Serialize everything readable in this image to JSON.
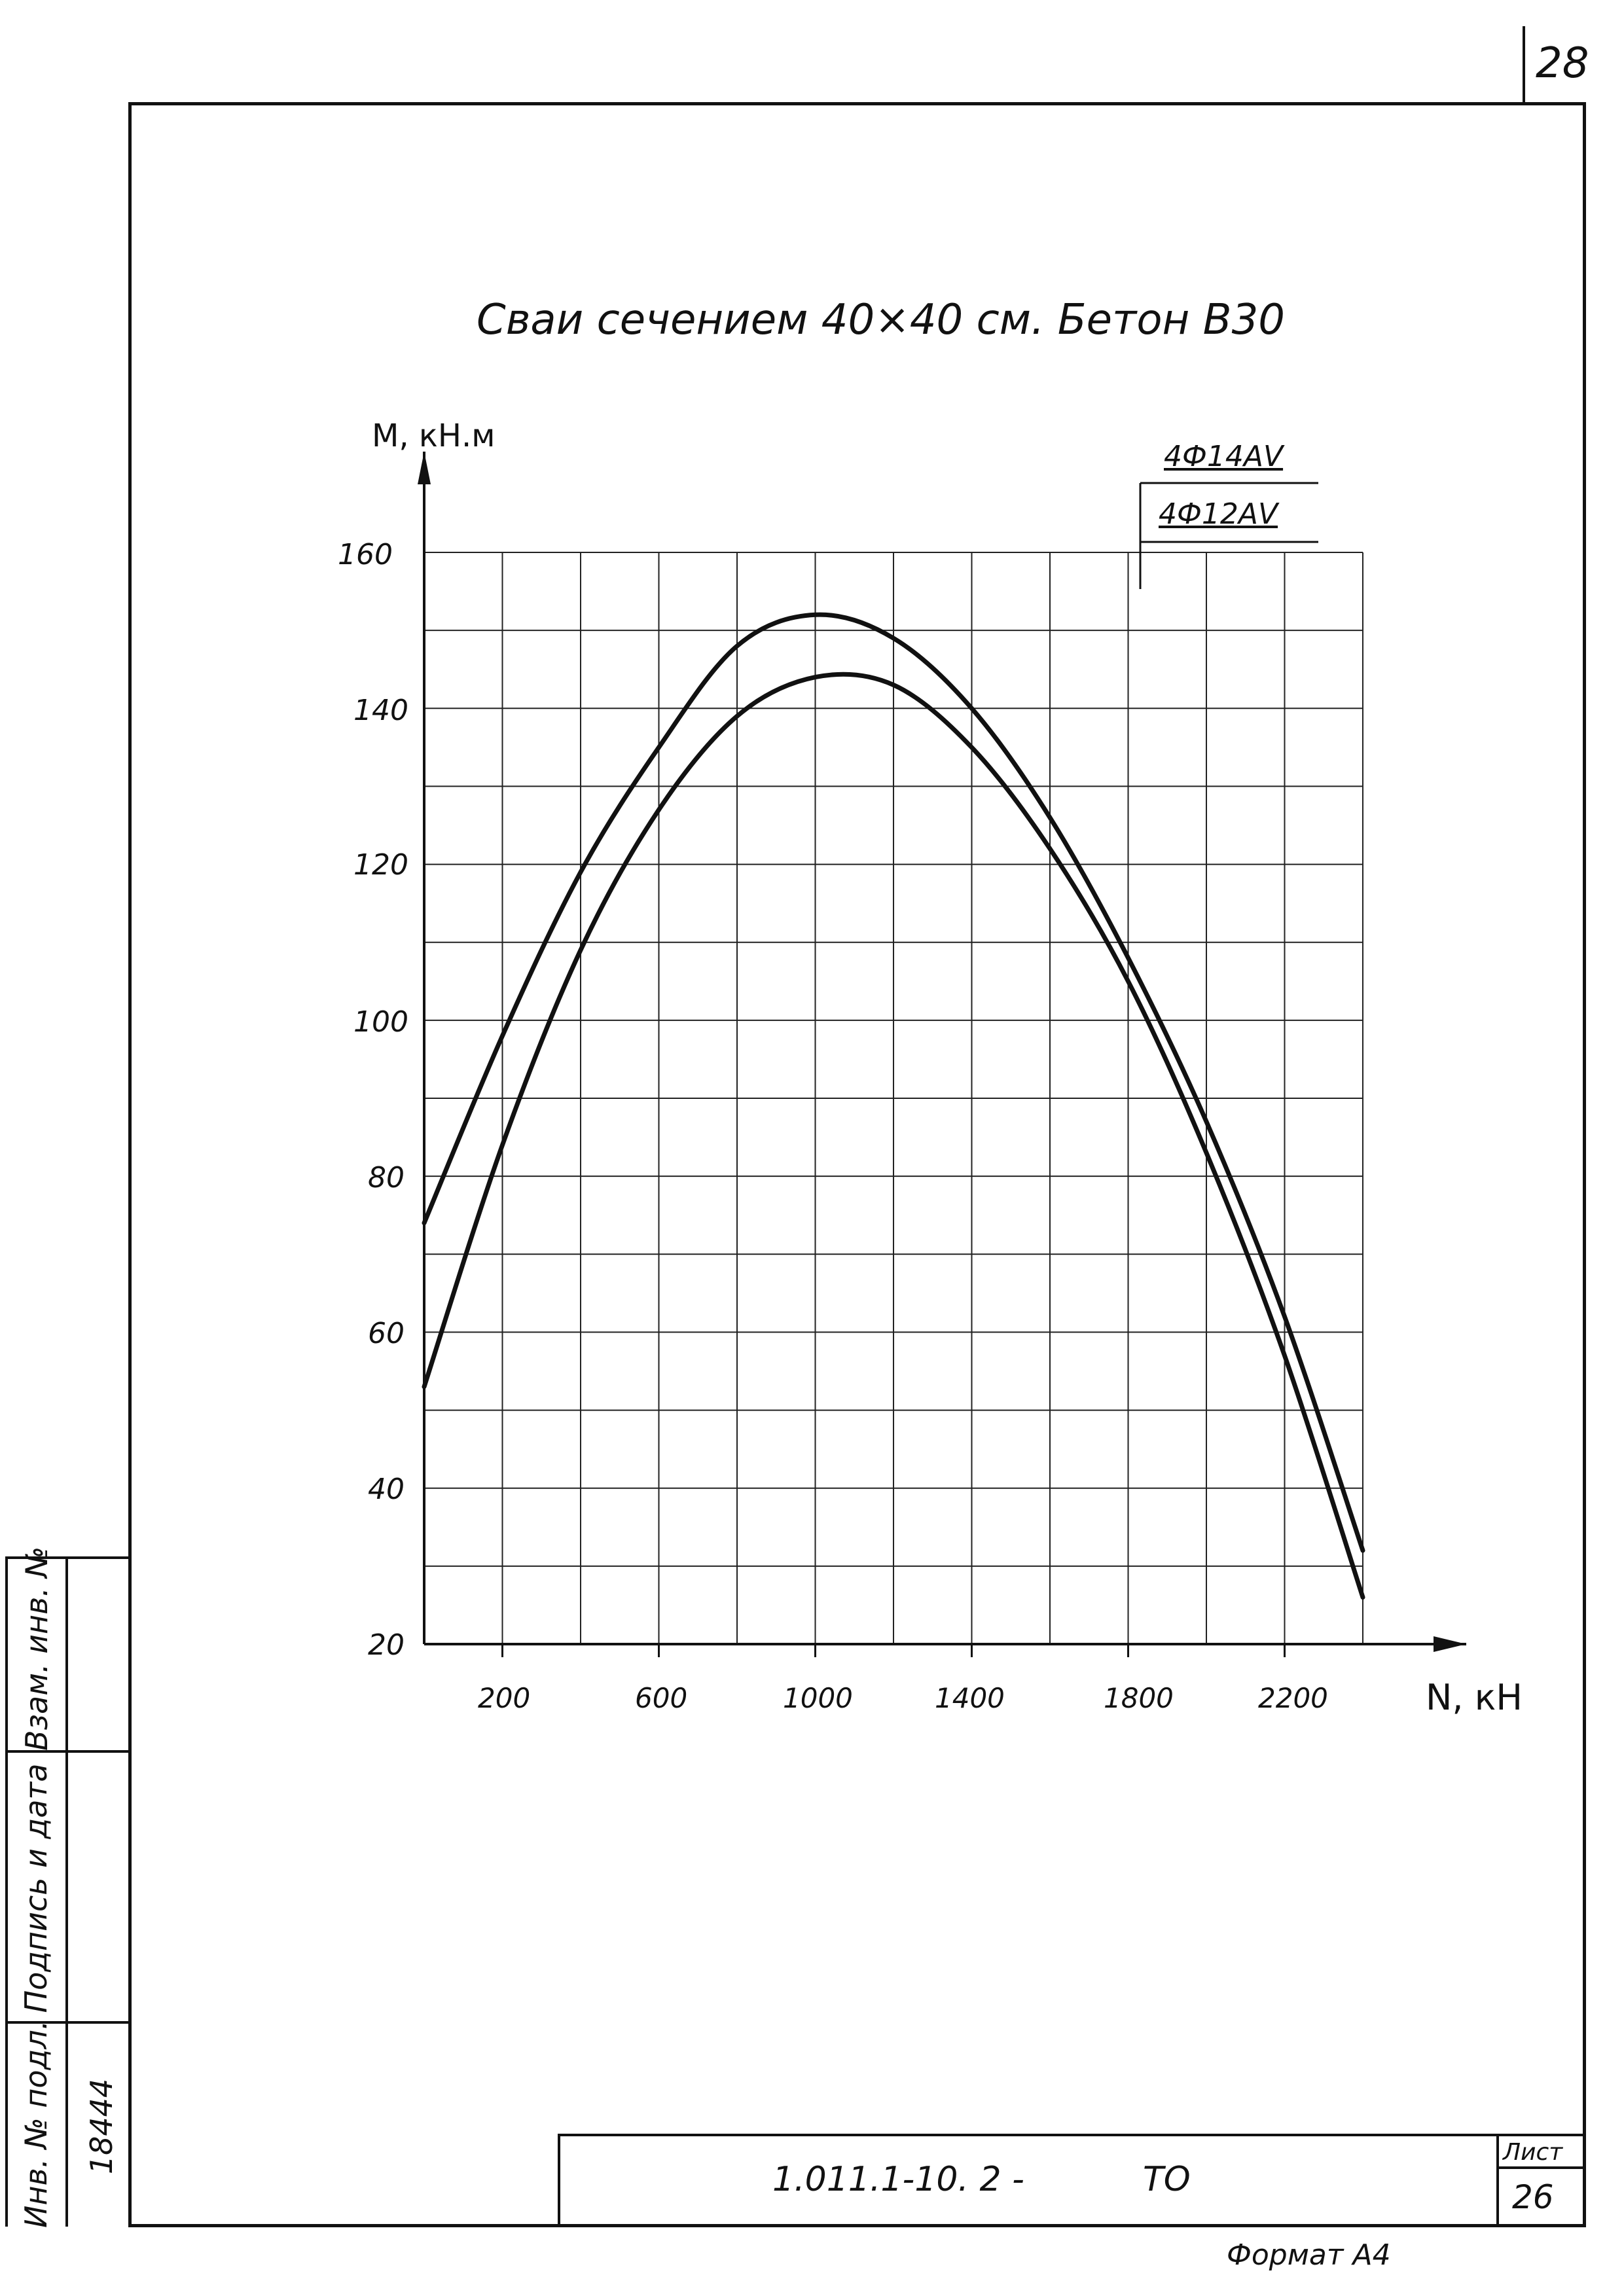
{
  "page": {
    "sheet_number_top": "28",
    "format_label": "Формат А4"
  },
  "stamp": {
    "designation": "1.011.1-10. 2 -",
    "doc_code": "ТО",
    "sheet_label": "Лист",
    "sheet_number": "26"
  },
  "side_stamp": {
    "inv_no_label": "Инв. № подл.",
    "inv_no_value": "18444",
    "sign_date_label": "Подпись и дата",
    "replaces_inv_label": "Взам. инв. №"
  },
  "chart_data": {
    "type": "line",
    "title": "Сваи сечением 40×40 см. Бетон В30",
    "xlabel": "N, кН",
    "ylabel": "М, кН.м",
    "xlim": [
      0,
      2400
    ],
    "ylim": [
      20,
      160
    ],
    "x_ticks": [
      200,
      600,
      1000,
      1400,
      1800,
      2200
    ],
    "x_tick_labels": [
      "200",
      "600",
      "1000",
      "1400",
      "1800",
      "2200"
    ],
    "y_ticks": [
      20,
      40,
      60,
      80,
      100,
      120,
      140,
      160
    ],
    "y_tick_labels": [
      "20",
      "40",
      "60",
      "80",
      "100",
      "120",
      "140",
      "160"
    ],
    "grid": true,
    "legend_position": "top-right",
    "series": [
      {
        "name": "4Ф14АV",
        "x": [
          0,
          200,
          400,
          600,
          800,
          1000,
          1200,
          1400,
          1600,
          1800,
          2000,
          2200,
          2400
        ],
        "values": [
          74,
          98,
          119,
          135,
          148,
          152,
          149,
          140,
          126,
          108,
          87,
          62,
          32
        ]
      },
      {
        "name": "4Ф12АV",
        "x": [
          0,
          200,
          400,
          600,
          800,
          1000,
          1200,
          1400,
          1600,
          1800,
          2000,
          2200,
          2400
        ],
        "values": [
          53,
          84,
          109,
          127,
          139,
          144,
          143,
          135,
          122,
          105,
          83,
          57,
          26
        ]
      }
    ]
  }
}
